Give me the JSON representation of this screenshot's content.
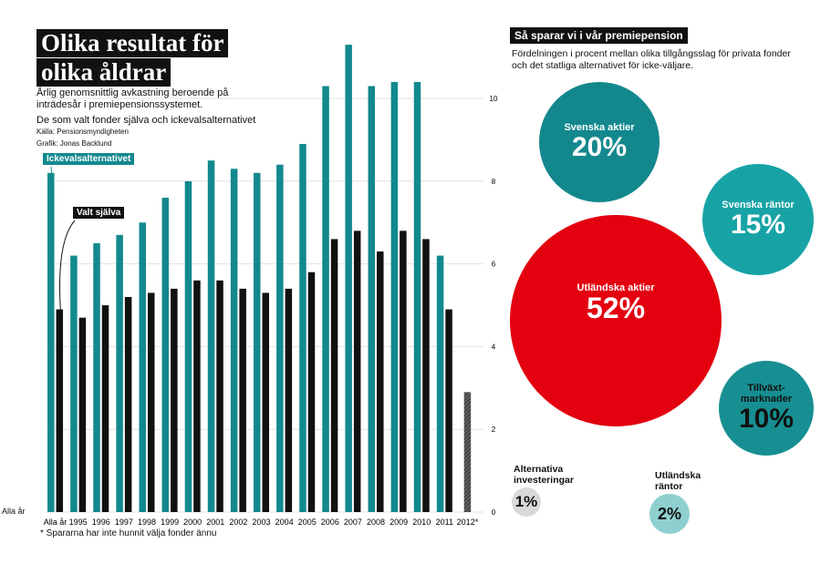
{
  "left": {
    "title_lines": [
      "Olika resultat för",
      "olika åldrar"
    ],
    "subtitle": "Årlig genomsnittlig avkastning beroende på inträdesår i premiepensionssystemet.",
    "subtitle2": "De som valt fonder själva och ickevalsalternativet",
    "source": "Källa: Pensionsmyndigheten",
    "credit": "Grafik: Jonas Backlund",
    "footnote": "* Spararna har inte hunnit välja fonder ännu",
    "left_axis_stub": "Alla år"
  },
  "right": {
    "title": "Så sparar vi i vår premiepension",
    "subtitle": "Fördelningen i procent mellan olika tillgångsslag för privata fonder och det statliga alternativet för icke-väljare.",
    "bubbles": [
      {
        "label": "Svenska aktier",
        "value": "20%",
        "color": "#12888d"
      },
      {
        "label": "Svenska räntor",
        "value": "15%",
        "color": "#17a3a6"
      },
      {
        "label": "Utländska aktier",
        "value": "52%",
        "color": "#e3000f"
      },
      {
        "label": "Tillväxt-marknader",
        "value": "10%",
        "color": "#178f92"
      },
      {
        "label": "Alternativa investeringar",
        "value": "1%",
        "color": "#d9d9d9"
      },
      {
        "label": "Utländska räntor",
        "value": "2%",
        "color": "#8ed0cf"
      }
    ]
  },
  "chart_data": {
    "type": "bar",
    "categories": [
      "Alla år",
      "1995",
      "1996",
      "1997",
      "1998",
      "1999",
      "2000",
      "2001",
      "2002",
      "2003",
      "2004",
      "2005",
      "2006",
      "2007",
      "2008",
      "2009",
      "2010",
      "2011",
      "2012*"
    ],
    "series": [
      {
        "name": "Ickevalsalternativet",
        "color": "#12898e",
        "values": [
          8.2,
          6.2,
          6.5,
          6.7,
          7.0,
          7.6,
          8.0,
          8.5,
          8.3,
          8.2,
          8.4,
          8.9,
          10.3,
          11.3,
          10.3,
          10.4,
          10.4,
          6.2,
          null
        ]
      },
      {
        "name": "Valt själva",
        "color": "#111111",
        "values": [
          4.9,
          4.7,
          5.0,
          5.2,
          5.3,
          5.4,
          5.6,
          5.6,
          5.4,
          5.3,
          5.4,
          5.8,
          6.6,
          6.8,
          6.3,
          6.8,
          6.6,
          4.9,
          2.9
        ]
      }
    ],
    "yticks": [
      0,
      2,
      4,
      6,
      8,
      10
    ],
    "ylim": [
      0,
      11.5
    ],
    "grid": true,
    "title": "Olika resultat för olika åldrar",
    "xlabel": "",
    "ylabel": ""
  }
}
